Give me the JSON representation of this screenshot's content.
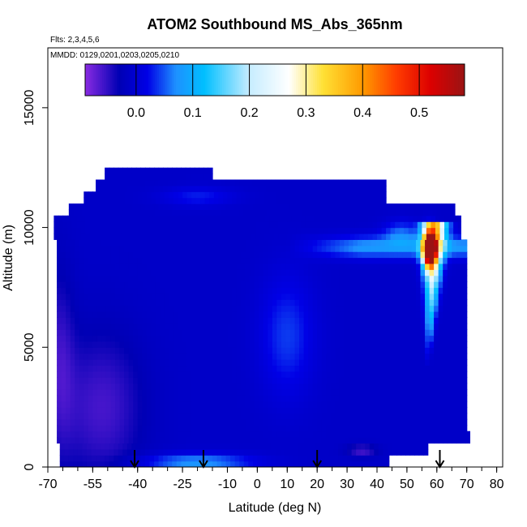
{
  "chart_data": {
    "type": "heatmap",
    "title": "ATOM2 Southbound MS_Abs_365nm",
    "subtitle_flights": "Flts: 2,3,4,5,6",
    "subtitle_dates": "MMDD: 0129,0201,0203,0205,0210",
    "xlabel": "Latitude (deg N)",
    "ylabel": "Altitude (m)",
    "xlim": [
      -70,
      82
    ],
    "ylim": [
      0,
      17500
    ],
    "xticks": [
      -70,
      -55,
      -40,
      -25,
      -10,
      0,
      10,
      20,
      30,
      40,
      50,
      60,
      70,
      80
    ],
    "xtick_labels": [
      "-70",
      "-55",
      "-40",
      "-25",
      "-10",
      "0",
      "10",
      "20",
      "30",
      "40",
      "50",
      "60",
      "70",
      "80"
    ],
    "yticks": [
      0,
      5000,
      10000,
      15000
    ],
    "ytick_labels": [
      "0",
      "5000",
      "10000",
      "15000"
    ],
    "colorbar": {
      "range": [
        -0.09,
        0.58
      ],
      "ticks": [
        0.0,
        0.1,
        0.2,
        0.3,
        0.4,
        0.5
      ],
      "tick_labels": [
        "0.0",
        "0.1",
        "0.2",
        "0.3",
        "0.4",
        "0.5"
      ],
      "stops": [
        {
          "v": -0.09,
          "c": "#8a2be2"
        },
        {
          "v": -0.03,
          "c": "#0000b4"
        },
        {
          "v": 0.02,
          "c": "#0000e6"
        },
        {
          "v": 0.07,
          "c": "#1e90ff"
        },
        {
          "v": 0.12,
          "c": "#00bfff"
        },
        {
          "v": 0.2,
          "c": "#c6ecff"
        },
        {
          "v": 0.27,
          "c": "#ffffff"
        },
        {
          "v": 0.33,
          "c": "#ffe135"
        },
        {
          "v": 0.4,
          "c": "#ff9a00"
        },
        {
          "v": 0.46,
          "c": "#ff3c00"
        },
        {
          "v": 0.52,
          "c": "#dc0000"
        },
        {
          "v": 0.58,
          "c": "#9a1414"
        }
      ]
    },
    "coverage": [
      {
        "alt": [
          0,
          500
        ],
        "lat": [
          -66,
          44
        ]
      },
      {
        "alt": [
          500,
          1000
        ],
        "lat": [
          -66,
          57
        ]
      },
      {
        "alt": [
          1000,
          1500
        ],
        "lat": [
          -67,
          71
        ]
      },
      {
        "alt": [
          1500,
          9500
        ],
        "lat": [
          -67,
          70
        ]
      },
      {
        "alt": [
          9500,
          10500
        ],
        "lat": [
          -68,
          68
        ]
      },
      {
        "alt": [
          10500,
          11000
        ],
        "lat": [
          -63,
          66
        ]
      },
      {
        "alt": [
          11000,
          11500
        ],
        "lat": [
          -58,
          43
        ]
      },
      {
        "alt": [
          11500,
          12000
        ],
        "lat": [
          -54,
          43
        ]
      },
      {
        "alt": [
          12000,
          12500
        ],
        "lat": [
          -51,
          -15
        ]
      }
    ],
    "features": [
      {
        "name": "background",
        "value": -0.01
      },
      {
        "name": "southern-purple",
        "lat": -52,
        "alt": 2500,
        "value": -0.06
      },
      {
        "name": "upper-band",
        "lat": 30,
        "alt": 9200,
        "value": 0.08
      },
      {
        "name": "tropical-column",
        "lat": 10,
        "alt": 5500,
        "value": 0.04
      },
      {
        "name": "arctic-plume-max",
        "lat": 57.5,
        "alt": 9100,
        "value": 0.57
      },
      {
        "name": "arctic-plume-column",
        "lat": 59,
        "alt": 7000,
        "value": 0.3
      },
      {
        "name": "surface-streak",
        "lat": -20,
        "alt": 200,
        "value": 0.08
      }
    ],
    "flight_markers_lat": [
      -41,
      -18,
      20,
      61
    ]
  }
}
